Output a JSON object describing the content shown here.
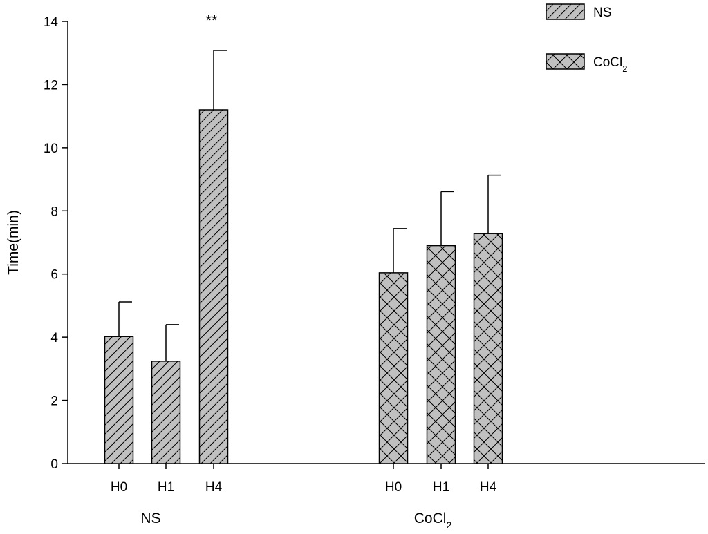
{
  "chart_data": {
    "type": "bar",
    "ylabel": "Time(min)",
    "ylim": [
      0,
      14
    ],
    "yticks": [
      "0",
      "2",
      "4",
      "6",
      "8",
      "10",
      "12",
      "14"
    ],
    "groups": [
      {
        "name": "NS",
        "categories": [
          "H0",
          "H1",
          "H4"
        ]
      },
      {
        "name": "CoCl",
        "name_sub": "2",
        "categories": [
          "H0",
          "H1",
          "H4"
        ]
      }
    ],
    "series": [
      {
        "name": "NS",
        "pattern": "diagonal-hatch",
        "categories": [
          "H0",
          "H1",
          "H4"
        ],
        "values": [
          4.02,
          3.24,
          11.2
        ],
        "errors": [
          1.1,
          1.16,
          1.88
        ]
      },
      {
        "name": "CoCl",
        "name_sub": "2",
        "pattern": "crosshatch",
        "categories": [
          "H0",
          "H1",
          "H4"
        ],
        "values": [
          6.04,
          6.9,
          7.28
        ],
        "errors": [
          1.4,
          1.71,
          1.85
        ]
      }
    ],
    "annotations": [
      {
        "text": "**",
        "series": "NS",
        "category": "H4"
      }
    ],
    "legend": {
      "position": "top-right"
    },
    "grid": false,
    "colors": {
      "bar_fill": "#c0c0c0",
      "stroke": "#000000",
      "background": "#ffffff"
    }
  }
}
